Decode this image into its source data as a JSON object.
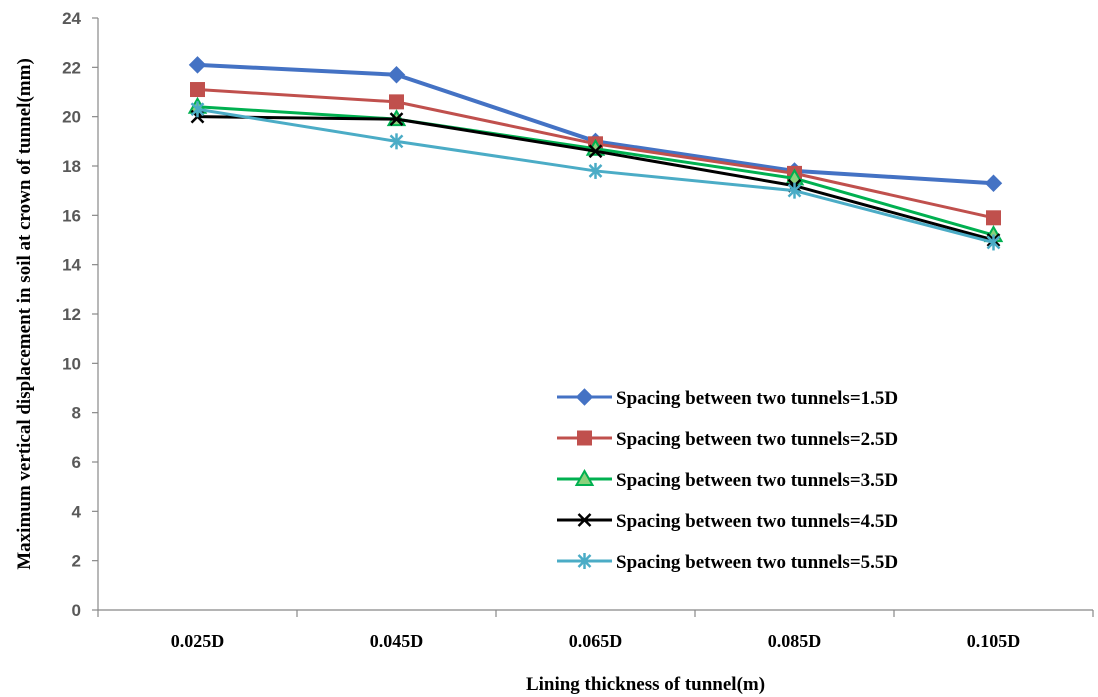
{
  "chart_data": {
    "type": "line",
    "categories": [
      "0.025D",
      "0.045D",
      "0.065D",
      "0.085D",
      "0.105D"
    ],
    "xlabel": "Lining thickness of tunnel(m)",
    "ylabel": "Maximum vertical displacement in soil at crown of tunnel(mm)",
    "ylim": [
      0,
      24
    ],
    "yticks": [
      0,
      2,
      4,
      6,
      8,
      10,
      12,
      14,
      16,
      18,
      20,
      22,
      24
    ],
    "grid": false,
    "legend_position": "bottom-right",
    "series": [
      {
        "name": "Spacing between two tunnels=1.5D",
        "values": [
          22.1,
          21.7,
          19.0,
          17.8,
          17.3
        ],
        "color": "#4472C4",
        "marker": "diamond"
      },
      {
        "name": "Spacing between two tunnels=2.5D",
        "values": [
          21.1,
          20.6,
          18.9,
          17.7,
          15.9
        ],
        "color": "#C0504D",
        "marker": "square"
      },
      {
        "name": "Spacing between two tunnels=3.5D",
        "values": [
          20.4,
          19.9,
          18.7,
          17.5,
          15.2
        ],
        "color": "#00B050",
        "marker": "triangle"
      },
      {
        "name": "Spacing between two tunnels=4.5D",
        "values": [
          20.0,
          19.9,
          18.6,
          17.2,
          15.0
        ],
        "color": "#000000",
        "marker": "x"
      },
      {
        "name": "Spacing between two tunnels=5.5D",
        "values": [
          20.3,
          19.0,
          17.8,
          17.0,
          14.9
        ],
        "color": "#4BACC6",
        "marker": "star"
      }
    ]
  }
}
